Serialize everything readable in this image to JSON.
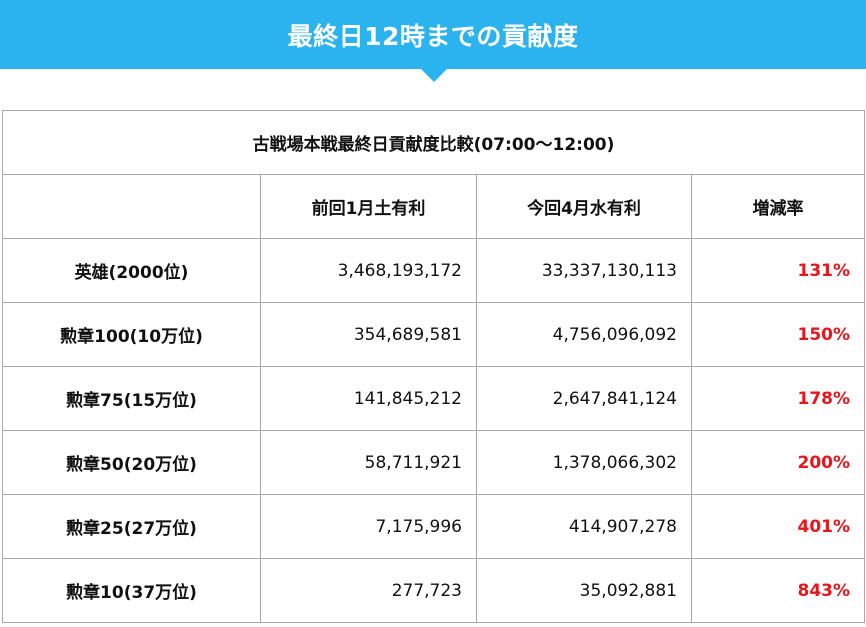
{
  "banner": {
    "title": "最終日12時までの貢献度"
  },
  "table": {
    "caption": "古戦場本戦最終日貢献度比較(07:00～12:00)",
    "headers": [
      "",
      "前回1月土有利",
      "今回4月水有利",
      "増減率"
    ],
    "rows": [
      {
        "label": "英雄(2000位)",
        "previous": "3,468,193,172",
        "current": "33,337,130,113",
        "rate": "131%"
      },
      {
        "label": "勲章100(10万位)",
        "previous": "354,689,581",
        "current": "4,756,096,092",
        "rate": "150%"
      },
      {
        "label": "勲章75(15万位)",
        "previous": "141,845,212",
        "current": "2,647,841,124",
        "rate": "178%"
      },
      {
        "label": "勲章50(20万位)",
        "previous": "58,711,921",
        "current": "1,378,066,302",
        "rate": "200%"
      },
      {
        "label": "勲章25(27万位)",
        "previous": "7,175,996",
        "current": "414,907,278",
        "rate": "401%"
      },
      {
        "label": "勲章10(37万位)",
        "previous": "277,723",
        "current": "35,092,881",
        "rate": "843%"
      }
    ]
  },
  "colors": {
    "banner": "#2bb3ef",
    "rate": "#e8151b",
    "border": "#a8a8a8"
  }
}
